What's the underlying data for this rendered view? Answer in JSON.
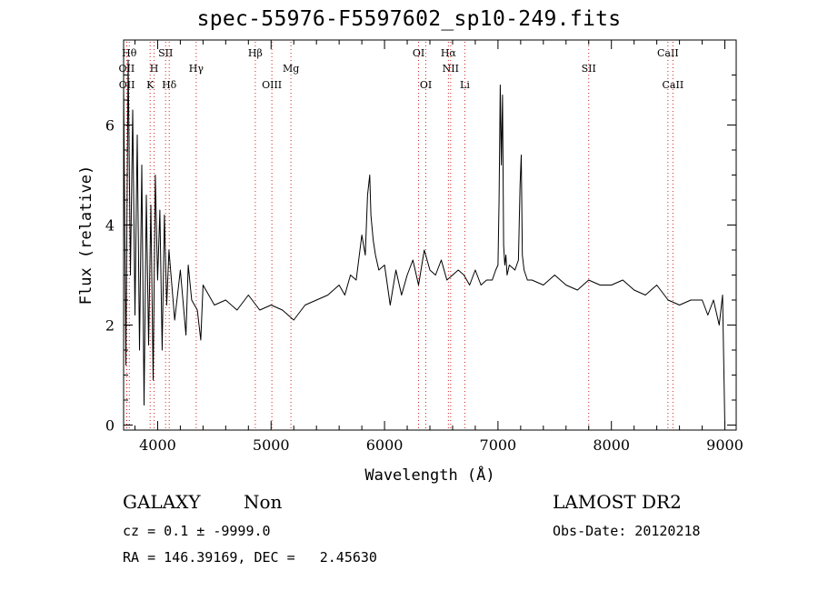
{
  "title": "spec-55976-F5597602_sp10-249.fits",
  "info": {
    "class": "GALAXY",
    "subclass": "Non",
    "survey": "LAMOST DR2",
    "cz_text": "cz = 0.1 ± -9999.0",
    "obs_date": "Obs-Date: 20120218",
    "coords": "RA = 146.39169, DEC =   2.45630"
  },
  "chart_data": {
    "type": "line",
    "title": "spec-55976-F5597602_sp10-249.fits",
    "xlabel": "Wavelength (Å)",
    "ylabel": "Flux (relative)",
    "xlim": [
      3700,
      9100
    ],
    "ylim": [
      -0.1,
      7.7
    ],
    "x_ticks": [
      4000,
      5000,
      6000,
      7000,
      8000,
      9000
    ],
    "y_ticks": [
      0,
      2,
      4,
      6
    ],
    "grid": false,
    "series": [
      {
        "color": "#000000",
        "x": [
          3700,
          3720,
          3740,
          3760,
          3780,
          3800,
          3820,
          3840,
          3860,
          3880,
          3900,
          3920,
          3940,
          3960,
          3980,
          4000,
          4020,
          4040,
          4060,
          4080,
          4100,
          4150,
          4200,
          4250,
          4270,
          4300,
          4350,
          4380,
          4400,
          4500,
          4600,
          4700,
          4800,
          4900,
          5000,
          5100,
          5200,
          5300,
          5400,
          5500,
          5600,
          5650,
          5700,
          5750,
          5800,
          5830,
          5850,
          5870,
          5880,
          5900,
          5920,
          5950,
          6000,
          6050,
          6100,
          6150,
          6200,
          6250,
          6300,
          6350,
          6400,
          6450,
          6500,
          6550,
          6600,
          6650,
          6700,
          6750,
          6800,
          6850,
          6900,
          6950,
          6980,
          7000,
          7010,
          7020,
          7030,
          7040,
          7050,
          7060,
          7070,
          7080,
          7100,
          7150,
          7180,
          7195,
          7205,
          7215,
          7230,
          7260,
          7300,
          7400,
          7500,
          7600,
          7700,
          7800,
          7900,
          8000,
          8100,
          8200,
          8300,
          8400,
          8500,
          8600,
          8700,
          8800,
          8850,
          8900,
          8950,
          8980,
          9000
        ],
        "y": [
          6.8,
          1.2,
          7.3,
          3.0,
          6.3,
          2.2,
          5.8,
          1.5,
          5.2,
          0.4,
          4.6,
          1.6,
          4.4,
          0.9,
          5.0,
          2.9,
          4.3,
          1.5,
          4.2,
          2.4,
          3.5,
          2.1,
          3.1,
          1.8,
          3.2,
          2.5,
          2.3,
          1.7,
          2.8,
          2.4,
          2.5,
          2.3,
          2.6,
          2.3,
          2.4,
          2.3,
          2.1,
          2.4,
          2.5,
          2.6,
          2.8,
          2.6,
          3.0,
          2.9,
          3.8,
          3.4,
          4.6,
          5.0,
          4.2,
          3.7,
          3.4,
          3.1,
          3.2,
          2.4,
          3.1,
          2.6,
          3.0,
          3.3,
          2.8,
          3.5,
          3.1,
          3.0,
          3.3,
          2.9,
          3.0,
          3.1,
          3.0,
          2.8,
          3.1,
          2.8,
          2.9,
          2.9,
          3.1,
          3.2,
          4.5,
          6.8,
          5.2,
          6.6,
          3.6,
          3.2,
          3.4,
          3.0,
          3.2,
          3.1,
          3.3,
          4.8,
          5.4,
          3.4,
          3.1,
          2.9,
          2.9,
          2.8,
          3.0,
          2.8,
          2.7,
          2.9,
          2.8,
          2.8,
          2.9,
          2.7,
          2.6,
          2.8,
          2.5,
          2.4,
          2.5,
          2.5,
          2.2,
          2.5,
          2.0,
          2.6,
          0.0
        ]
      }
    ],
    "line_markers": [
      {
        "x": 3727,
        "label": "OII",
        "row": 1
      },
      {
        "x": 3729,
        "label": "OII",
        "row": 3
      },
      {
        "x": 3750,
        "label": "Hθ",
        "row": 0
      },
      {
        "x": 3934,
        "label": "K",
        "row": 3
      },
      {
        "x": 3969,
        "label": "H",
        "row": 1
      },
      {
        "x": 4070,
        "label": "SII",
        "row": 0
      },
      {
        "x": 4102,
        "label": "Hδ",
        "row": 3
      },
      {
        "x": 4340,
        "label": "Hγ",
        "row": 1
      },
      {
        "x": 4861,
        "label": "Hβ",
        "row": 0
      },
      {
        "x": 5007,
        "label": "OIII",
        "row": 3
      },
      {
        "x": 5175,
        "label": "Mg",
        "row": 1
      },
      {
        "x": 6300,
        "label": "OI",
        "row": 0
      },
      {
        "x": 6364,
        "label": "OI",
        "row": 3
      },
      {
        "x": 6563,
        "label": "Hα",
        "row": 0
      },
      {
        "x": 6583,
        "label": "NII",
        "row": 1
      },
      {
        "x": 6708,
        "label": "Li",
        "row": 3
      },
      {
        "x": 7800,
        "label": "SII",
        "row": 1
      },
      {
        "x": 8498,
        "label": "CaII",
        "row": 0
      },
      {
        "x": 8542,
        "label": "CaII",
        "row": 3
      }
    ]
  }
}
